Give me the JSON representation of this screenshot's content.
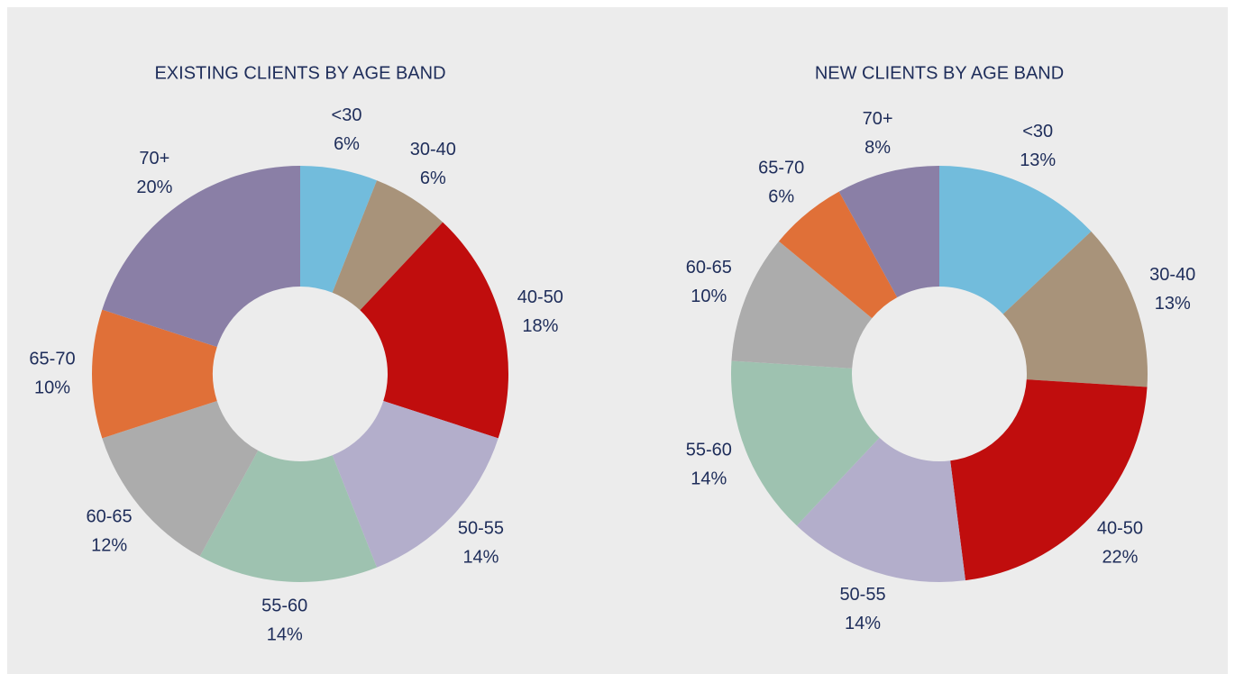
{
  "chart_data": [
    {
      "type": "donut",
      "title": "EXISTING CLIENTS BY AGE BAND",
      "categories": [
        "<30",
        "30-40",
        "40-50",
        "50-55",
        "55-60",
        "60-65",
        "65-70",
        "70+"
      ],
      "values": [
        6,
        6,
        18,
        14,
        14,
        12,
        10,
        20
      ],
      "value_labels": [
        "6%",
        "6%",
        "18%",
        "14%",
        "14%",
        "12%",
        "10%",
        "20%"
      ],
      "colors": [
        "#72bcdc",
        "#a8937a",
        "#c00d0d",
        "#b3aecb",
        "#9ec2b0",
        "#acacac",
        "#e07038",
        "#8a7fa6"
      ]
    },
    {
      "type": "donut",
      "title": "NEW CLIENTS BY AGE BAND",
      "categories": [
        "<30",
        "30-40",
        "40-50",
        "50-55",
        "55-60",
        "60-65",
        "65-70",
        "70+"
      ],
      "values": [
        13,
        13,
        22,
        14,
        14,
        10,
        6,
        8
      ],
      "value_labels": [
        "13%",
        "13%",
        "22%",
        "14%",
        "14%",
        "10%",
        "6%",
        "8%"
      ],
      "colors": [
        "#72bcdc",
        "#a8937a",
        "#c00d0d",
        "#b3aecb",
        "#9ec2b0",
        "#acacac",
        "#e07038",
        "#8a7fa6"
      ]
    }
  ]
}
